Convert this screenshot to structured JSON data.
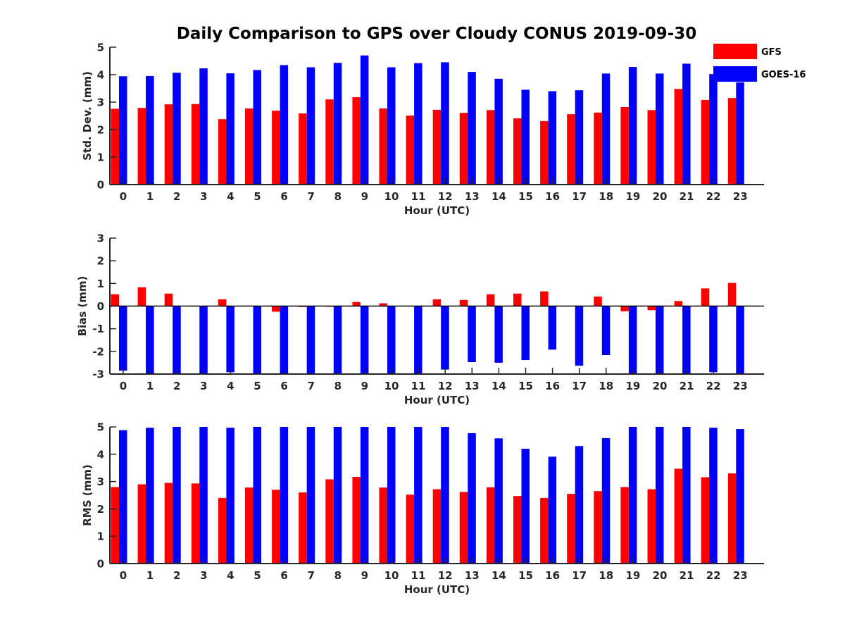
{
  "title": "Daily Comparison to GPS over Cloudy CONUS 2019-09-30",
  "colors": {
    "GFS": "#ff0000",
    "GOES-16": "#0000ff",
    "axis": "#262626"
  },
  "legend": {
    "placement": "top-right",
    "items": [
      "GFS",
      "GOES-16"
    ]
  },
  "chart_data": [
    {
      "type": "bar",
      "xlabel": "Hour (UTC)",
      "ylabel": "Std. Dev. (mm)",
      "ylim": [
        0,
        5
      ],
      "yticks": [
        0,
        1,
        2,
        3,
        4,
        5
      ],
      "grid": false,
      "categories": [
        "0",
        "1",
        "2",
        "3",
        "4",
        "5",
        "6",
        "7",
        "8",
        "9",
        "10",
        "11",
        "12",
        "13",
        "14",
        "15",
        "16",
        "17",
        "18",
        "19",
        "20",
        "21",
        "22",
        "23"
      ],
      "series": [
        {
          "name": "GFS",
          "values": [
            2.76,
            2.79,
            2.92,
            2.93,
            2.38,
            2.77,
            2.69,
            2.59,
            3.1,
            3.18,
            2.77,
            2.51,
            2.72,
            2.61,
            2.71,
            2.41,
            2.31,
            2.56,
            2.62,
            2.82,
            2.71,
            3.48,
            3.08,
            3.15
          ]
        },
        {
          "name": "GOES-16",
          "values": [
            3.94,
            3.95,
            4.07,
            4.23,
            4.05,
            4.17,
            4.35,
            4.27,
            4.43,
            4.7,
            4.27,
            4.42,
            4.45,
            4.1,
            3.85,
            3.45,
            3.4,
            3.43,
            4.04,
            4.28,
            4.04,
            4.4,
            4.02,
            3.72
          ]
        }
      ]
    },
    {
      "type": "bar",
      "xlabel": "Hour (UTC)",
      "ylabel": "Bias (mm)",
      "ylim": [
        -3,
        3
      ],
      "yticks": [
        -3,
        -2,
        -1,
        0,
        1,
        2,
        3
      ],
      "grid": false,
      "categories": [
        "0",
        "1",
        "2",
        "3",
        "4",
        "5",
        "6",
        "7",
        "8",
        "9",
        "10",
        "11",
        "12",
        "13",
        "14",
        "15",
        "16",
        "17",
        "18",
        "19",
        "20",
        "21",
        "22",
        "23"
      ],
      "series": [
        {
          "name": "GFS",
          "values": [
            0.52,
            0.83,
            0.55,
            0.02,
            0.3,
            0.02,
            -0.25,
            -0.04,
            -0.03,
            0.18,
            0.12,
            0.02,
            0.3,
            0.27,
            0.52,
            0.55,
            0.65,
            0.01,
            0.42,
            -0.23,
            -0.18,
            0.22,
            0.78,
            1.02
          ]
        },
        {
          "name": "GOES-16",
          "values": [
            -2.85,
            -3.1,
            -3.1,
            -3.1,
            -2.92,
            -3.1,
            -3.1,
            -3.1,
            -3.1,
            -3.1,
            -3.1,
            -3.1,
            -2.8,
            -2.47,
            -2.5,
            -2.38,
            -1.92,
            -2.63,
            -2.16,
            -3.1,
            -3.1,
            -3.1,
            -2.92,
            -3.1
          ]
        }
      ]
    },
    {
      "type": "bar",
      "xlabel": "Hour (UTC)",
      "ylabel": "RMS (mm)",
      "ylim": [
        0,
        5
      ],
      "yticks": [
        0,
        1,
        2,
        3,
        4,
        5
      ],
      "grid": false,
      "categories": [
        "0",
        "1",
        "2",
        "3",
        "4",
        "5",
        "6",
        "7",
        "8",
        "9",
        "10",
        "11",
        "12",
        "13",
        "14",
        "15",
        "16",
        "17",
        "18",
        "19",
        "20",
        "21",
        "22",
        "23"
      ],
      "series": [
        {
          "name": "GFS",
          "values": [
            2.8,
            2.9,
            2.95,
            2.93,
            2.4,
            2.78,
            2.7,
            2.6,
            3.08,
            3.17,
            2.78,
            2.52,
            2.72,
            2.62,
            2.79,
            2.47,
            2.4,
            2.55,
            2.65,
            2.8,
            2.72,
            3.47,
            3.16,
            3.3
          ]
        },
        {
          "name": "GOES-16",
          "values": [
            4.88,
            4.97,
            5.1,
            5.1,
            4.97,
            5.1,
            5.1,
            5.1,
            5.1,
            5.1,
            5.1,
            5.1,
            5.1,
            4.77,
            4.58,
            4.2,
            3.91,
            4.3,
            4.59,
            5.1,
            5.1,
            5.1,
            4.97,
            4.92
          ]
        }
      ]
    }
  ]
}
